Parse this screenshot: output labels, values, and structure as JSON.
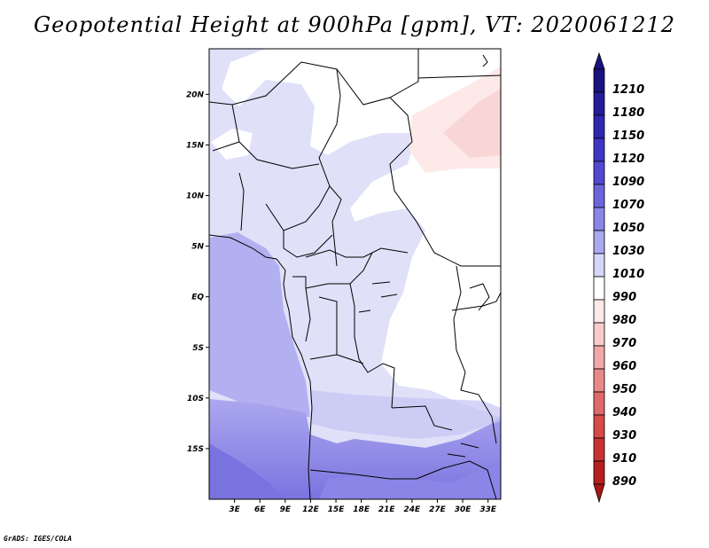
{
  "title": "Geopotential Height at 900hPa [gpm], VT: 2020061212",
  "footer": "GrADS: IGES/COLA",
  "map": {
    "lon_range": [
      0,
      34.5
    ],
    "lat_range": [
      -20,
      24.5
    ],
    "lon_ticks": [
      3,
      6,
      9,
      12,
      15,
      18,
      21,
      24,
      27,
      30,
      33
    ],
    "lon_tick_labels": [
      "3E",
      "6E",
      "9E",
      "12E",
      "15E",
      "18E",
      "21E",
      "24E",
      "27E",
      "30E",
      "33E"
    ],
    "lat_ticks": [
      20,
      15,
      10,
      5,
      0,
      -5,
      -10,
      -15
    ],
    "lat_tick_labels": [
      "20N",
      "15N",
      "10N",
      "5N",
      "EQ",
      "5S",
      "10S",
      "15S"
    ]
  },
  "colorbar": {
    "levels": [
      {
        "label": "1210",
        "color": "#1a1280"
      },
      {
        "label": "1180",
        "color": "#241c9a"
      },
      {
        "label": "1150",
        "color": "#2f27b0"
      },
      {
        "label": "1120",
        "color": "#3d36c4"
      },
      {
        "label": "1090",
        "color": "#5149d2"
      },
      {
        "label": "1070",
        "color": "#6b65dc"
      },
      {
        "label": "1050",
        "color": "#8a85e6"
      },
      {
        "label": "1030",
        "color": "#aba8ef"
      },
      {
        "label": "1010",
        "color": "#d6d6f8"
      },
      {
        "label": "990",
        "color": "#ffffff"
      },
      {
        "label": "980",
        "color": "#fde9e8"
      },
      {
        "label": "970",
        "color": "#f8cccc"
      },
      {
        "label": "960",
        "color": "#f1a8a8"
      },
      {
        "label": "950",
        "color": "#e88a8a"
      },
      {
        "label": "940",
        "color": "#e06a6a"
      },
      {
        "label": "930",
        "color": "#d64a4a"
      },
      {
        "label": "910",
        "color": "#c93232"
      },
      {
        "label": "890",
        "color": "#b82020"
      }
    ],
    "bottom_color": "#a81616"
  }
}
